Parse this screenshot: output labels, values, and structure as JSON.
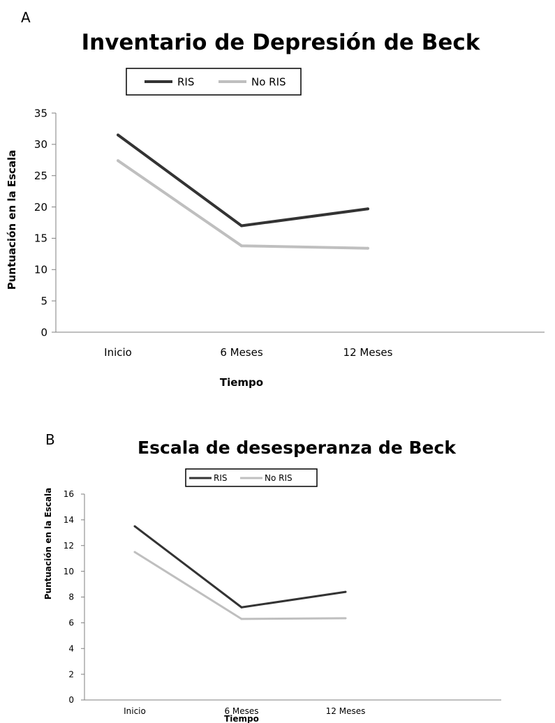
{
  "chart_data": [
    {
      "panel": "A",
      "type": "line",
      "title": "Inventario de Depresión de Beck",
      "xlabel": "Tiempo",
      "ylabel": "Puntuación en la Escala",
      "categories": [
        "Inicio",
        "6 Meses",
        "12 Meses"
      ],
      "ylim": [
        0,
        35
      ],
      "yticks": [
        0,
        5,
        10,
        15,
        20,
        25,
        30,
        35
      ],
      "series": [
        {
          "name": "RIS",
          "color": "#333333",
          "values": [
            31.5,
            17.0,
            19.7
          ]
        },
        {
          "name": "No RIS",
          "color": "#bfbfbf",
          "values": [
            27.4,
            13.8,
            13.4
          ]
        }
      ],
      "legend": "top",
      "grid": false
    },
    {
      "panel": "B",
      "type": "line",
      "title": "Escala de desesperanza de Beck",
      "xlabel": "Tiempo",
      "ylabel": "Puntuación en la Escala",
      "categories": [
        "Inicio",
        "6 Meses",
        "12 Meses"
      ],
      "ylim": [
        0,
        16
      ],
      "yticks": [
        0,
        2,
        4,
        6,
        8,
        10,
        12,
        14,
        16
      ],
      "series": [
        {
          "name": "RIS",
          "color": "#333333",
          "values": [
            13.5,
            7.2,
            8.4
          ]
        },
        {
          "name": "No RIS",
          "color": "#bfbfbf",
          "values": [
            11.5,
            6.3,
            6.35
          ]
        }
      ],
      "legend": "top",
      "grid": false
    }
  ]
}
